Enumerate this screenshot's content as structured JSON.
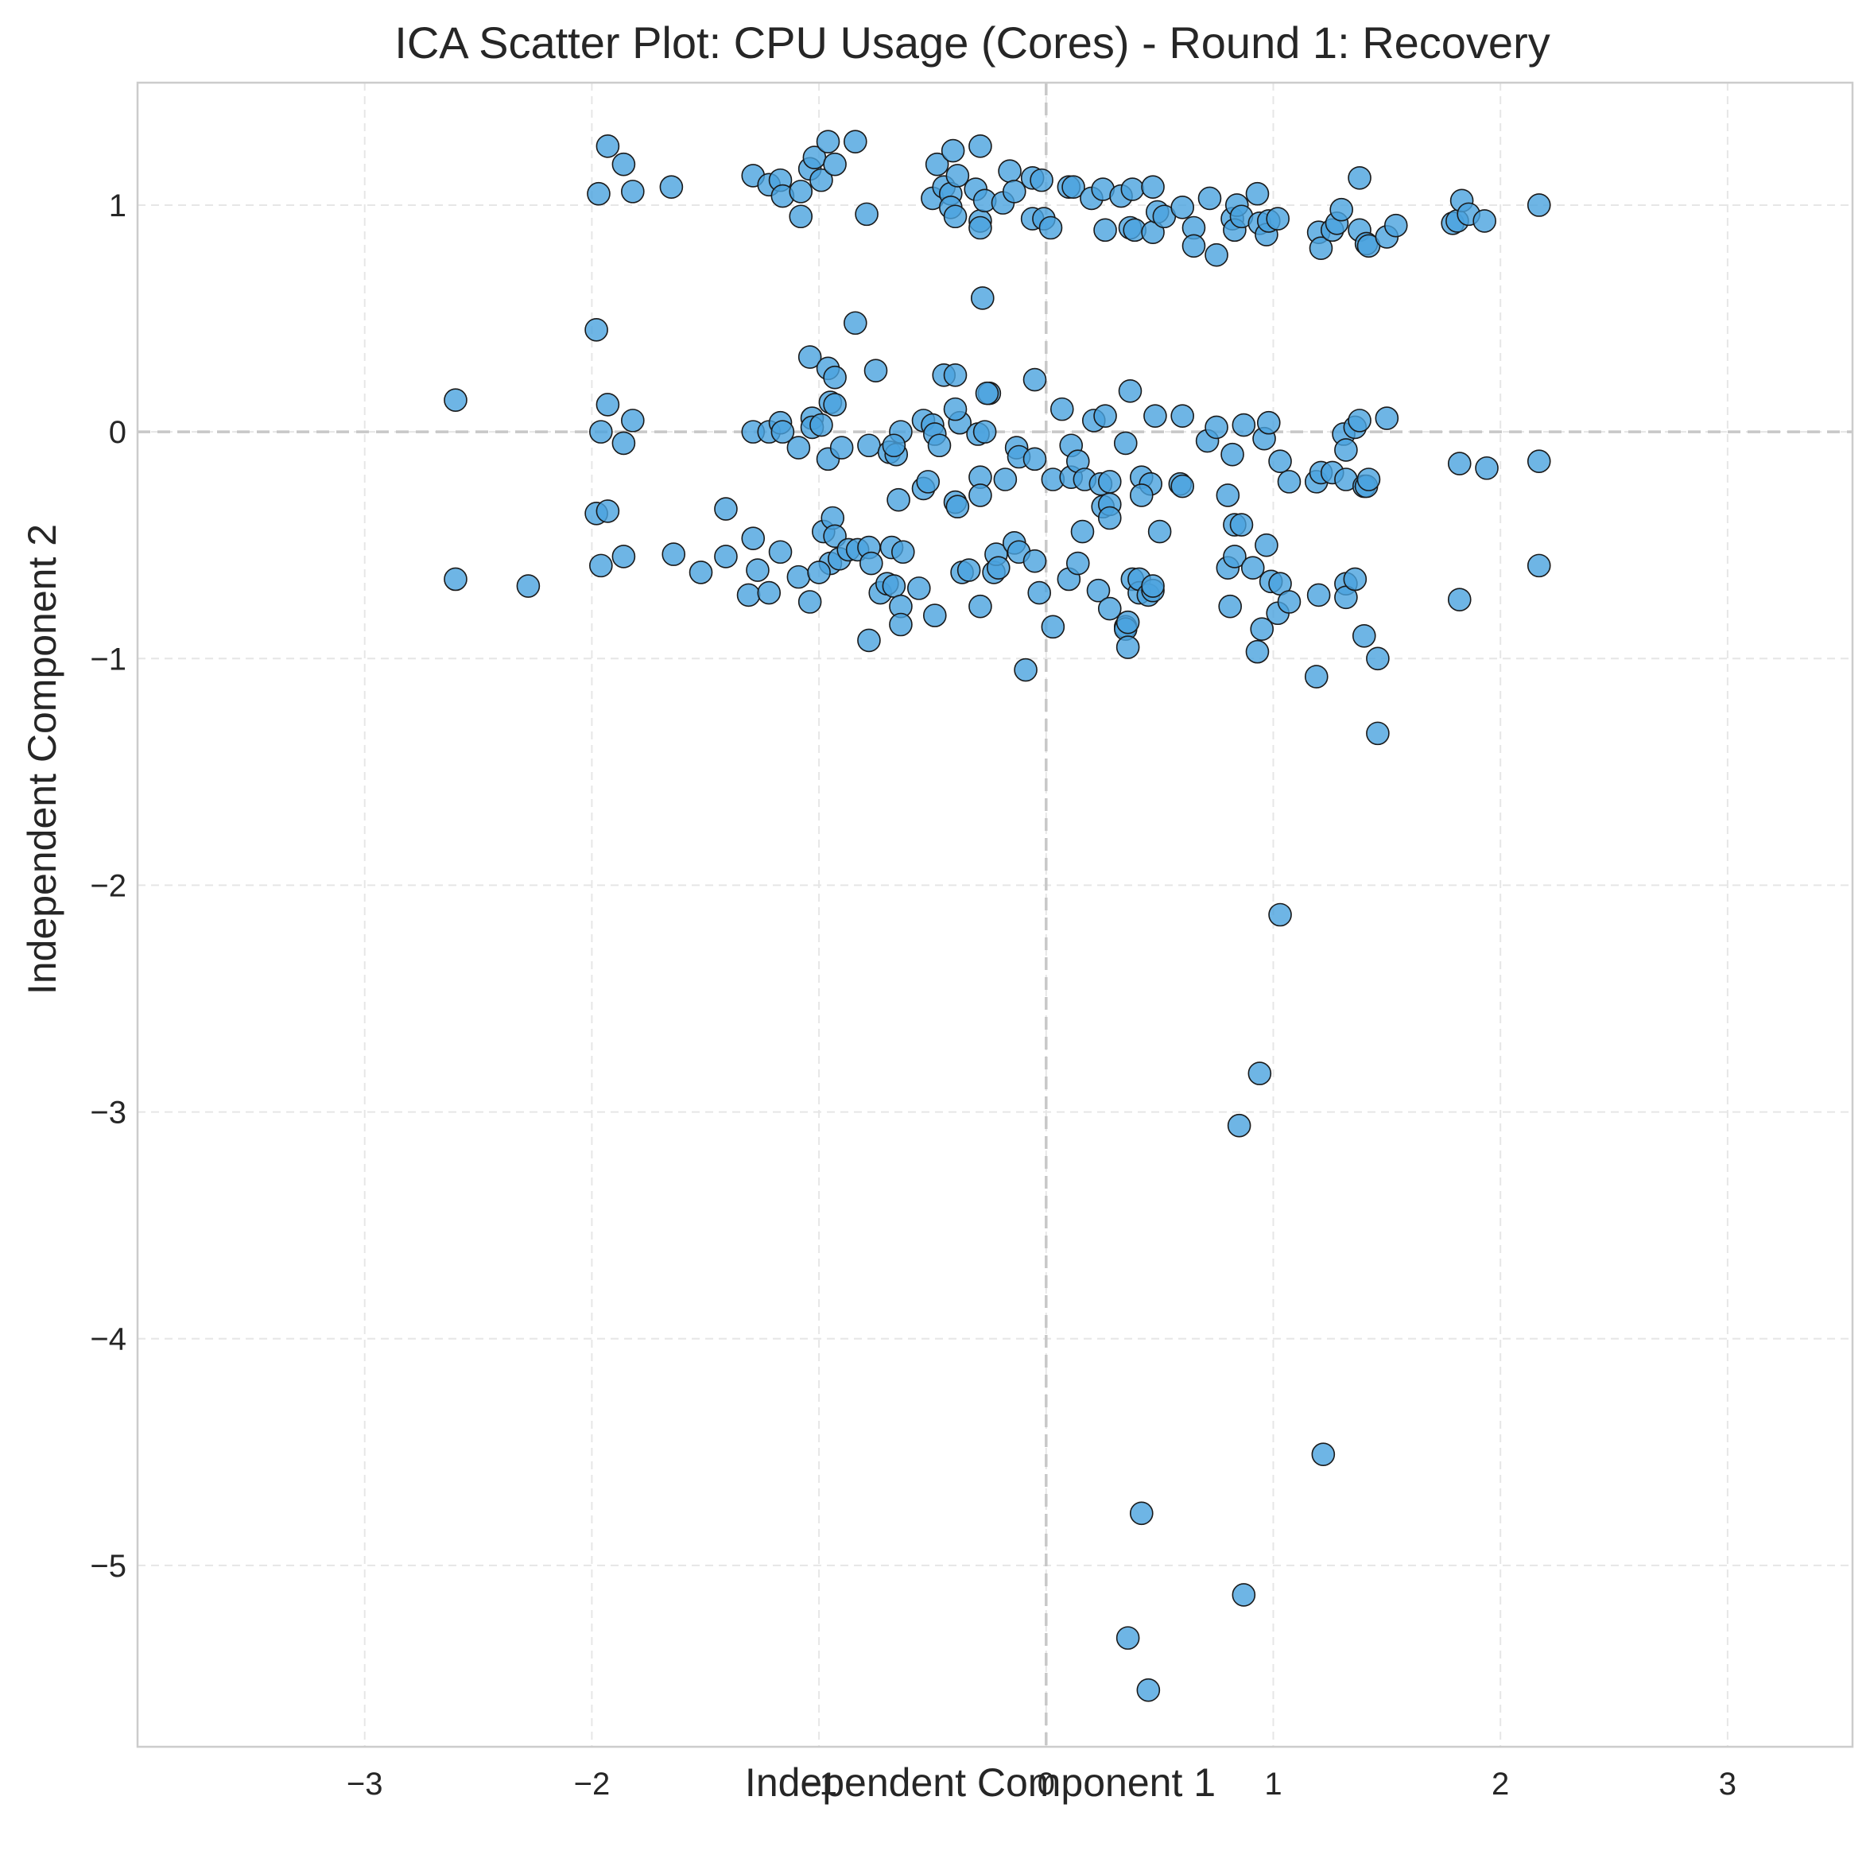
{
  "chart_data": {
    "type": "scatter",
    "title": "ICA Scatter Plot: CPU Usage (Cores) - Round 1: Recovery",
    "xlabel": "Independent Component 1",
    "ylabel": "Independent Component 2",
    "xlim": [
      -4.0,
      3.55
    ],
    "ylim": [
      -5.8,
      1.54
    ],
    "xticks": [
      -3,
      -2,
      -1,
      0,
      1,
      2,
      3
    ],
    "yticks": [
      -5,
      -4,
      -3,
      -2,
      -1,
      0,
      1
    ],
    "grid": true,
    "reference_lines": {
      "x": 0,
      "y": 0
    },
    "marker_color": "#4aa3df",
    "marker_edge_color": "#1a1a1a",
    "points": [
      [
        -1.93,
        1.26
      ],
      [
        -1.86,
        1.18
      ],
      [
        -1.97,
        1.05
      ],
      [
        -1.82,
        1.06
      ],
      [
        -1.65,
        1.08
      ],
      [
        -1.29,
        1.13
      ],
      [
        -1.22,
        1.09
      ],
      [
        -1.17,
        1.11
      ],
      [
        -1.16,
        1.04
      ],
      [
        -1.08,
        1.06
      ],
      [
        -1.04,
        1.16
      ],
      [
        -1.02,
        1.21
      ],
      [
        -0.99,
        1.11
      ],
      [
        -0.96,
        1.28
      ],
      [
        -0.93,
        1.18
      ],
      [
        -0.84,
        1.28
      ],
      [
        -1.08,
        0.95
      ],
      [
        -0.79,
        0.96
      ],
      [
        -0.48,
        1.18
      ],
      [
        -0.41,
        1.24
      ],
      [
        -0.29,
        1.26
      ],
      [
        -0.5,
        1.03
      ],
      [
        -0.45,
        1.08
      ],
      [
        -0.42,
        1.05
      ],
      [
        -0.39,
        1.13
      ],
      [
        -0.42,
        0.99
      ],
      [
        -0.4,
        0.95
      ],
      [
        -0.31,
        1.07
      ],
      [
        -0.29,
        0.93
      ],
      [
        -0.29,
        0.9
      ],
      [
        -0.27,
        1.02
      ],
      [
        -0.19,
        1.01
      ],
      [
        -0.16,
        1.15
      ],
      [
        -0.14,
        1.06
      ],
      [
        -0.06,
        1.12
      ],
      [
        -0.02,
        1.11
      ],
      [
        -0.06,
        0.94
      ],
      [
        -0.01,
        0.94
      ],
      [
        0.02,
        0.9
      ],
      [
        0.1,
        1.08
      ],
      [
        0.12,
        1.08
      ],
      [
        0.2,
        1.03
      ],
      [
        0.25,
        1.07
      ],
      [
        0.26,
        0.89
      ],
      [
        0.33,
        1.04
      ],
      [
        0.38,
        1.07
      ],
      [
        0.37,
        0.9
      ],
      [
        0.39,
        0.89
      ],
      [
        0.47,
        1.08
      ],
      [
        0.47,
        0.88
      ],
      [
        0.49,
        0.97
      ],
      [
        0.52,
        0.95
      ],
      [
        0.6,
        0.99
      ],
      [
        0.65,
        0.9
      ],
      [
        0.65,
        0.82
      ],
      [
        0.72,
        1.03
      ],
      [
        0.75,
        0.78
      ],
      [
        0.82,
        0.94
      ],
      [
        0.83,
        0.89
      ],
      [
        0.84,
        1.0
      ],
      [
        0.86,
        0.95
      ],
      [
        0.93,
        1.05
      ],
      [
        0.94,
        0.92
      ],
      [
        0.97,
        0.87
      ],
      [
        0.98,
        0.93
      ],
      [
        1.02,
        0.94
      ],
      [
        1.2,
        0.88
      ],
      [
        1.21,
        0.81
      ],
      [
        1.26,
        0.89
      ],
      [
        1.28,
        0.92
      ],
      [
        1.3,
        0.98
      ],
      [
        1.38,
        1.12
      ],
      [
        1.38,
        0.89
      ],
      [
        1.41,
        0.83
      ],
      [
        1.42,
        0.82
      ],
      [
        1.5,
        0.86
      ],
      [
        1.54,
        0.91
      ],
      [
        1.79,
        0.92
      ],
      [
        1.81,
        0.93
      ],
      [
        1.83,
        1.02
      ],
      [
        1.86,
        0.96
      ],
      [
        1.93,
        0.93
      ],
      [
        2.17,
        1.0
      ],
      [
        -0.28,
        0.59
      ],
      [
        -1.98,
        0.45
      ],
      [
        -0.84,
        0.48
      ],
      [
        -2.6,
        0.14
      ],
      [
        -1.93,
        0.12
      ],
      [
        -1.82,
        0.05
      ],
      [
        -1.96,
        0.0
      ],
      [
        -1.86,
        -0.05
      ],
      [
        -1.29,
        0.0
      ],
      [
        -1.22,
        0.0
      ],
      [
        -1.17,
        0.04
      ],
      [
        -1.16,
        0.0
      ],
      [
        -1.09,
        -0.07
      ],
      [
        -1.04,
        0.33
      ],
      [
        -0.96,
        0.28
      ],
      [
        -0.93,
        0.24
      ],
      [
        -0.95,
        0.13
      ],
      [
        -0.93,
        0.12
      ],
      [
        -0.75,
        0.27
      ],
      [
        -1.03,
        0.06
      ],
      [
        -1.03,
        0.02
      ],
      [
        -0.99,
        0.03
      ],
      [
        -0.96,
        -0.12
      ],
      [
        -0.9,
        -0.07
      ],
      [
        -0.78,
        -0.06
      ],
      [
        -0.69,
        -0.09
      ],
      [
        -0.66,
        -0.1
      ],
      [
        -0.64,
        0.0
      ],
      [
        -0.67,
        -0.06
      ],
      [
        -0.45,
        0.25
      ],
      [
        -0.4,
        0.25
      ],
      [
        -0.25,
        0.17
      ],
      [
        -0.26,
        0.17
      ],
      [
        -0.05,
        0.23
      ],
      [
        -0.54,
        0.05
      ],
      [
        -0.5,
        0.03
      ],
      [
        -0.49,
        -0.01
      ],
      [
        -0.47,
        -0.06
      ],
      [
        -0.38,
        0.04
      ],
      [
        -0.4,
        0.1
      ],
      [
        -0.3,
        -0.01
      ],
      [
        -0.27,
        0.0
      ],
      [
        -0.13,
        -0.07
      ],
      [
        -0.12,
        -0.11
      ],
      [
        -0.05,
        -0.12
      ],
      [
        -0.65,
        -0.3
      ],
      [
        -0.54,
        -0.25
      ],
      [
        -0.52,
        -0.22
      ],
      [
        -0.4,
        -0.31
      ],
      [
        -0.39,
        -0.33
      ],
      [
        -0.29,
        -0.2
      ],
      [
        -0.29,
        -0.28
      ],
      [
        -0.18,
        -0.21
      ],
      [
        0.03,
        -0.21
      ],
      [
        0.07,
        0.1
      ],
      [
        0.11,
        -0.06
      ],
      [
        0.11,
        -0.2
      ],
      [
        0.14,
        -0.13
      ],
      [
        0.17,
        -0.21
      ],
      [
        0.21,
        0.05
      ],
      [
        0.26,
        0.07
      ],
      [
        0.35,
        -0.05
      ],
      [
        0.37,
        0.18
      ],
      [
        0.42,
        -0.2
      ],
      [
        0.46,
        -0.23
      ],
      [
        0.42,
        -0.28
      ],
      [
        0.24,
        -0.23
      ],
      [
        0.25,
        -0.33
      ],
      [
        0.28,
        -0.22
      ],
      [
        0.28,
        -0.32
      ],
      [
        0.28,
        -0.38
      ],
      [
        0.16,
        -0.44
      ],
      [
        0.48,
        0.07
      ],
      [
        0.6,
        0.07
      ],
      [
        0.59,
        -0.23
      ],
      [
        0.6,
        -0.24
      ],
      [
        0.71,
        -0.04
      ],
      [
        0.75,
        0.02
      ],
      [
        0.82,
        -0.1
      ],
      [
        0.87,
        0.03
      ],
      [
        0.96,
        -0.03
      ],
      [
        0.98,
        0.04
      ],
      [
        1.03,
        -0.13
      ],
      [
        1.07,
        -0.22
      ],
      [
        0.8,
        -0.28
      ],
      [
        0.83,
        -0.41
      ],
      [
        0.86,
        -0.41
      ],
      [
        1.19,
        -0.22
      ],
      [
        1.21,
        -0.18
      ],
      [
        1.26,
        -0.18
      ],
      [
        1.31,
        -0.01
      ],
      [
        1.32,
        -0.08
      ],
      [
        1.32,
        -0.21
      ],
      [
        1.36,
        0.02
      ],
      [
        1.38,
        0.05
      ],
      [
        1.4,
        -0.24
      ],
      [
        1.41,
        -0.24
      ],
      [
        1.42,
        -0.21
      ],
      [
        1.5,
        0.06
      ],
      [
        1.82,
        -0.14
      ],
      [
        1.94,
        -0.16
      ],
      [
        2.17,
        -0.13
      ],
      [
        -1.98,
        -0.36
      ],
      [
        -1.93,
        -0.35
      ],
      [
        -1.96,
        -0.59
      ],
      [
        -1.86,
        -0.55
      ],
      [
        -1.64,
        -0.54
      ],
      [
        -1.41,
        -0.34
      ],
      [
        -1.41,
        -0.55
      ],
      [
        -1.52,
        -0.62
      ],
      [
        -1.29,
        -0.47
      ],
      [
        -1.27,
        -0.61
      ],
      [
        -1.31,
        -0.72
      ],
      [
        -1.22,
        -0.71
      ],
      [
        -1.17,
        -0.53
      ],
      [
        -1.09,
        -0.64
      ],
      [
        -1.04,
        -0.75
      ],
      [
        -2.6,
        -0.65
      ],
      [
        -2.28,
        -0.68
      ],
      [
        -0.98,
        -0.44
      ],
      [
        -0.94,
        -0.38
      ],
      [
        -0.93,
        -0.46
      ],
      [
        -0.95,
        -0.58
      ],
      [
        -0.91,
        -0.56
      ],
      [
        -0.87,
        -0.52
      ],
      [
        -0.83,
        -0.52
      ],
      [
        -1.0,
        -0.62
      ],
      [
        -0.78,
        -0.51
      ],
      [
        -0.77,
        -0.58
      ],
      [
        -0.73,
        -0.71
      ],
      [
        -0.7,
        -0.67
      ],
      [
        -0.67,
        -0.68
      ],
      [
        -0.68,
        -0.51
      ],
      [
        -0.63,
        -0.53
      ],
      [
        -0.78,
        -0.92
      ],
      [
        -0.64,
        -0.77
      ],
      [
        -0.64,
        -0.85
      ],
      [
        -0.56,
        -0.69
      ],
      [
        -0.49,
        -0.81
      ],
      [
        -0.37,
        -0.62
      ],
      [
        -0.34,
        -0.61
      ],
      [
        -0.29,
        -0.77
      ],
      [
        -0.23,
        -0.62
      ],
      [
        -0.22,
        -0.54
      ],
      [
        -0.21,
        -0.6
      ],
      [
        -0.14,
        -0.49
      ],
      [
        -0.12,
        -0.53
      ],
      [
        -0.05,
        -0.57
      ],
      [
        -0.03,
        -0.71
      ],
      [
        0.03,
        -0.86
      ],
      [
        -0.09,
        -1.05
      ],
      [
        0.1,
        -0.65
      ],
      [
        0.14,
        -0.58
      ],
      [
        0.23,
        -0.7
      ],
      [
        0.28,
        -0.78
      ],
      [
        0.35,
        -0.86
      ],
      [
        0.35,
        -0.87
      ],
      [
        0.36,
        -0.84
      ],
      [
        0.36,
        -0.95
      ],
      [
        0.38,
        -0.65
      ],
      [
        0.41,
        -0.71
      ],
      [
        0.41,
        -0.65
      ],
      [
        0.45,
        -0.72
      ],
      [
        0.47,
        -0.7
      ],
      [
        0.47,
        -0.68
      ],
      [
        0.5,
        -0.44
      ],
      [
        0.8,
        -0.6
      ],
      [
        0.81,
        -0.77
      ],
      [
        0.83,
        -0.55
      ],
      [
        0.91,
        -0.6
      ],
      [
        0.93,
        -0.97
      ],
      [
        0.95,
        -0.87
      ],
      [
        0.97,
        -0.5
      ],
      [
        0.99,
        -0.66
      ],
      [
        1.02,
        -0.8
      ],
      [
        1.03,
        -0.67
      ],
      [
        1.07,
        -0.75
      ],
      [
        1.19,
        -1.08
      ],
      [
        1.2,
        -0.72
      ],
      [
        1.32,
        -0.67
      ],
      [
        1.32,
        -0.73
      ],
      [
        1.36,
        -0.65
      ],
      [
        1.4,
        -0.9
      ],
      [
        1.46,
        -1.0
      ],
      [
        1.46,
        -1.33
      ],
      [
        1.82,
        -0.74
      ],
      [
        2.17,
        -0.59
      ],
      [
        1.03,
        -2.13
      ],
      [
        0.94,
        -2.83
      ],
      [
        0.85,
        -3.06
      ],
      [
        1.22,
        -4.51
      ],
      [
        0.42,
        -4.77
      ],
      [
        0.87,
        -5.13
      ],
      [
        0.36,
        -5.32
      ],
      [
        0.45,
        -5.55
      ]
    ]
  }
}
